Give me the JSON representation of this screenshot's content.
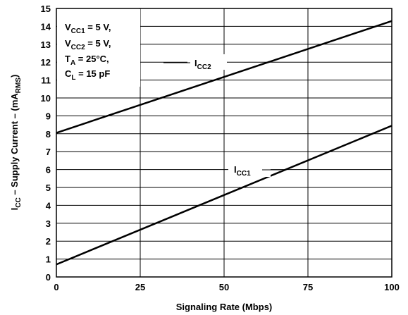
{
  "chart_data": {
    "type": "line",
    "xlabel": "Signaling Rate (Mbps)",
    "ylabel": {
      "base": "I",
      "sub": "CC",
      "text": " – Supply Current – (mA",
      "unit_sub": "RMS",
      "close": ")"
    },
    "xlim": [
      0,
      100
    ],
    "ylim": [
      0,
      15
    ],
    "x_ticks": [
      "0",
      "25",
      "50",
      "75",
      "100"
    ],
    "y_ticks": [
      "0",
      "1",
      "2",
      "3",
      "4",
      "5",
      "6",
      "7",
      "8",
      "9",
      "10",
      "11",
      "12",
      "13",
      "14",
      "15"
    ],
    "grid": true,
    "series": [
      {
        "label_base": "I",
        "label_sub": "CC2",
        "x": [
          0,
          100
        ],
        "y": [
          8.05,
          14.3
        ]
      },
      {
        "label_base": "I",
        "label_sub": "CC1",
        "x": [
          0,
          100
        ],
        "y": [
          0.7,
          8.45
        ]
      }
    ],
    "conditions": [
      {
        "pre": "V",
        "sub": "CC1",
        "post": " = 5 V,"
      },
      {
        "pre": "V",
        "sub": "CC2",
        "post": " = 5 V,"
      },
      {
        "pre": "T",
        "sub": "A",
        "post": " = 25°C,"
      },
      {
        "pre": "C",
        "sub": "L",
        "post": "  = 15 pF"
      }
    ]
  }
}
